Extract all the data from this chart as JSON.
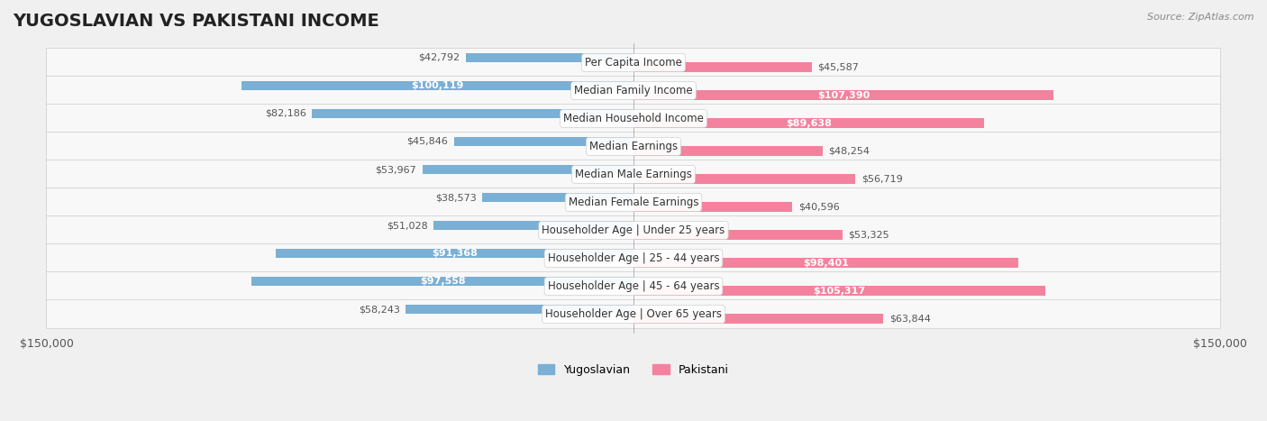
{
  "title": "YUGOSLAVIAN VS PAKISTANI INCOME",
  "source": "Source: ZipAtlas.com",
  "categories": [
    "Per Capita Income",
    "Median Family Income",
    "Median Household Income",
    "Median Earnings",
    "Median Male Earnings",
    "Median Female Earnings",
    "Householder Age | Under 25 years",
    "Householder Age | 25 - 44 years",
    "Householder Age | 45 - 64 years",
    "Householder Age | Over 65 years"
  ],
  "yugoslavian_values": [
    42792,
    100119,
    82186,
    45846,
    53967,
    38573,
    51028,
    91368,
    97558,
    58243
  ],
  "pakistani_values": [
    45587,
    107390,
    89638,
    48254,
    56719,
    40596,
    53325,
    98401,
    105317,
    63844
  ],
  "max_value": 150000,
  "blue_color": "#7bafd4",
  "pink_color": "#f4829e",
  "blue_dark": "#5b8fb5",
  "pink_dark": "#e05a80",
  "bar_height": 0.35,
  "bg_color": "#f0f0f0",
  "row_bg": "#f8f8f8",
  "label_bg": "#ffffff",
  "title_fontsize": 14,
  "label_fontsize": 8.5,
  "value_fontsize": 8,
  "legend_labels": [
    "Yugoslavian",
    "Pakistani"
  ]
}
